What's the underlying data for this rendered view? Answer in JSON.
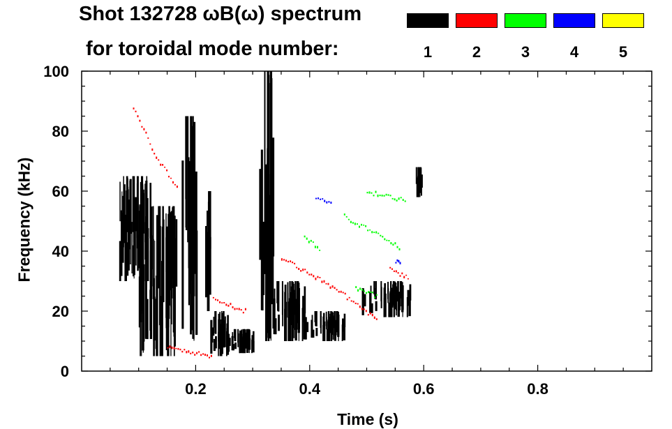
{
  "title_line1": "Shot 132728 ωB(ω) spectrum",
  "title_line2": "for toroidal mode number:",
  "modes": [
    {
      "label": "1",
      "color": "#000000"
    },
    {
      "label": "2",
      "color": "#ff0000"
    },
    {
      "label": "3",
      "color": "#00ff00"
    },
    {
      "label": "4",
      "color": "#0000ff"
    },
    {
      "label": "5",
      "color": "#ffff00"
    }
  ],
  "chart_data": {
    "type": "heatmap",
    "title": "Shot 132728 ωB(ω) spectrum",
    "xlabel": "Time (s)",
    "ylabel": "Frequency (kHz)",
    "xlim": [
      0.0,
      1.0
    ],
    "ylim": [
      0,
      100
    ],
    "xticks": [
      0.2,
      0.4,
      0.6,
      0.8
    ],
    "xtick_labels": [
      "0.2",
      "0.4",
      "0.6",
      "0.8"
    ],
    "yticks": [
      0,
      20,
      40,
      60,
      80,
      100
    ],
    "ytick_labels": [
      "0",
      "20",
      "40",
      "60",
      "80",
      "100"
    ],
    "grid": false,
    "legend": "top-right",
    "series": [
      {
        "name": "1",
        "color": "#000000",
        "blobs": [
          {
            "t0": 0.065,
            "t1": 0.12,
            "f0": 30,
            "f1": 65
          },
          {
            "t0": 0.1,
            "t1": 0.165,
            "f0": 5,
            "f1": 55
          },
          {
            "t0": 0.175,
            "t1": 0.2,
            "f0": 10,
            "f1": 85
          },
          {
            "t0": 0.215,
            "t1": 0.225,
            "f0": 20,
            "f1": 60
          },
          {
            "t0": 0.225,
            "t1": 0.255,
            "f0": 5,
            "f1": 20
          },
          {
            "t0": 0.255,
            "t1": 0.3,
            "f0": 6,
            "f1": 14
          },
          {
            "t0": 0.31,
            "t1": 0.335,
            "f0": 10,
            "f1": 100
          },
          {
            "t0": 0.325,
            "t1": 0.39,
            "f0": 10,
            "f1": 30
          },
          {
            "t0": 0.39,
            "t1": 0.46,
            "f0": 10,
            "f1": 20
          },
          {
            "t0": 0.49,
            "t1": 0.575,
            "f0": 18,
            "f1": 30
          },
          {
            "t0": 0.58,
            "t1": 0.595,
            "f0": 58,
            "f1": 68
          }
        ]
      },
      {
        "name": "2",
        "color": "#ff0000",
        "tracks": [
          {
            "t": [
              0.09,
              0.13,
              0.17
            ],
            "f": [
              88,
              72,
              60
            ]
          },
          {
            "t": [
              0.23,
              0.29
            ],
            "f": [
              24,
              20
            ]
          },
          {
            "t": [
              0.35,
              0.45,
              0.52
            ],
            "f": [
              38,
              27,
              17
            ]
          },
          {
            "t": [
              0.54,
              0.575
            ],
            "f": [
              34,
              31
            ]
          },
          {
            "t": [
              0.15,
              0.23
            ],
            "f": [
              8,
              5
            ]
          }
        ]
      },
      {
        "name": "3",
        "color": "#00ff00",
        "tracks": [
          {
            "t": [
              0.46,
              0.56
            ],
            "f": [
              52,
              41
            ]
          },
          {
            "t": [
              0.5,
              0.57
            ],
            "f": [
              60,
              57
            ]
          },
          {
            "t": [
              0.39,
              0.42
            ],
            "f": [
              45,
              40
            ]
          },
          {
            "t": [
              0.48,
              0.52
            ],
            "f": [
              28,
              25
            ]
          }
        ]
      },
      {
        "name": "4",
        "color": "#0000ff",
        "tracks": [
          {
            "t": [
              0.41,
              0.44
            ],
            "f": [
              58,
              56
            ]
          },
          {
            "t": [
              0.55,
              0.56
            ],
            "f": [
              37,
              36
            ]
          }
        ]
      },
      {
        "name": "5",
        "color": "#ffff00",
        "tracks": []
      }
    ]
  }
}
